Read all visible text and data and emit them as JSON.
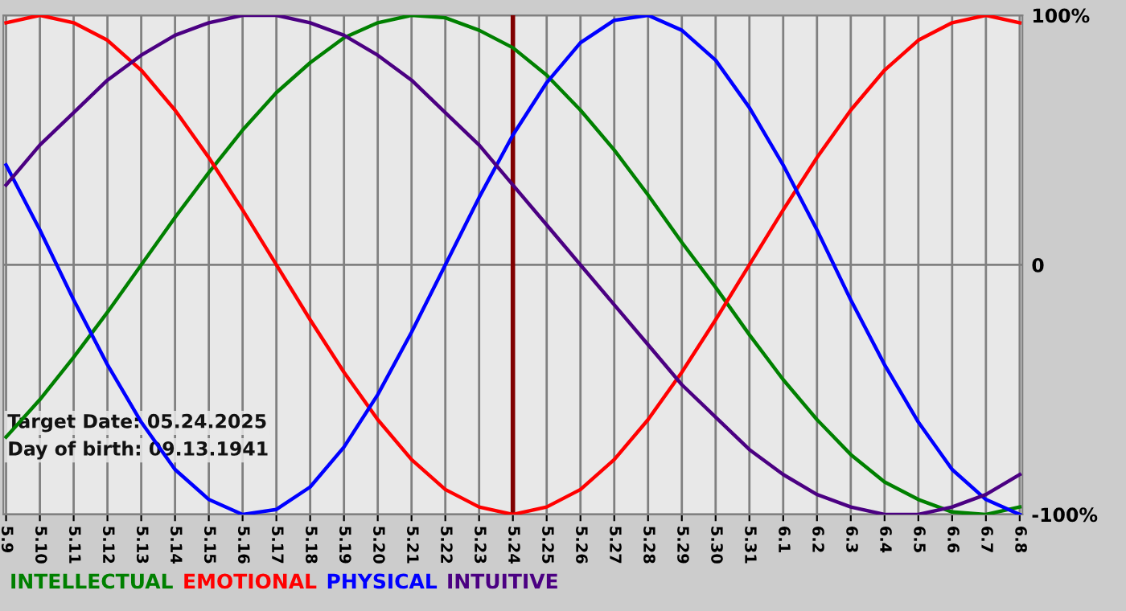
{
  "chart_data": {
    "type": "line",
    "categories": [
      "5.9",
      "5.10",
      "5.11",
      "5.12",
      "5.13",
      "5.14",
      "5.15",
      "5.16",
      "5.17",
      "5.18",
      "5.19",
      "5.20",
      "5.21",
      "5.22",
      "5.23",
      "5.24",
      "5.25",
      "5.26",
      "5.27",
      "5.28",
      "5.29",
      "5.30",
      "5.31",
      "6.1",
      "6.2",
      "6.3",
      "6.4",
      "6.5",
      "6.6",
      "6.7",
      "6.8"
    ],
    "series": [
      {
        "name": "INTELLECTUAL",
        "color": "#008000",
        "values": [
          -69,
          -54,
          -37,
          -19,
          0,
          19,
          37,
          54,
          69,
          81,
          91,
          97,
          100,
          99,
          94,
          87,
          76,
          62,
          46,
          28,
          9,
          -9,
          -28,
          -46,
          -62,
          -76,
          -87,
          -94,
          -99,
          -100,
          -97
        ]
      },
      {
        "name": "EMOTIONAL",
        "color": "#ff0000",
        "values": [
          97,
          100,
          97,
          90,
          78,
          62,
          43,
          22,
          0,
          -22,
          -43,
          -62,
          -78,
          -90,
          -97,
          -100,
          -97,
          -90,
          -78,
          -62,
          -43,
          -22,
          0,
          22,
          43,
          62,
          78,
          90,
          97,
          100,
          97
        ]
      },
      {
        "name": "PHYSICAL",
        "color": "#0000ff",
        "values": [
          40,
          14,
          -14,
          -40,
          -63,
          -82,
          -94,
          -100,
          -98,
          -89,
          -73,
          -52,
          -27,
          0,
          27,
          52,
          73,
          89,
          98,
          100,
          94,
          82,
          63,
          40,
          14,
          -14,
          -40,
          -63,
          -82,
          -94,
          -100
        ]
      },
      {
        "name": "INTUITIVE",
        "color": "#4b0082",
        "values": [
          32,
          48,
          61,
          74,
          84,
          92,
          97,
          100,
          100,
          97,
          92,
          84,
          74,
          61,
          48,
          32,
          16,
          0,
          -16,
          -32,
          -48,
          -61,
          -74,
          -84,
          -92,
          -97,
          -100,
          -100,
          -97,
          -92,
          -84
        ]
      }
    ],
    "ylim": [
      -100,
      100
    ],
    "yticks": [
      {
        "value": 100,
        "label": "100%"
      },
      0,
      {
        "value": -100,
        "label": "-100%"
      }
    ],
    "grid": true,
    "legend": "bottom left",
    "ref_lines": [
      {
        "axis": "x",
        "value": "5.24",
        "color": "#800000"
      }
    ],
    "annotations": [
      "Target Date: 05.24.2025",
      "Day of birth: 09.13.1941"
    ]
  }
}
